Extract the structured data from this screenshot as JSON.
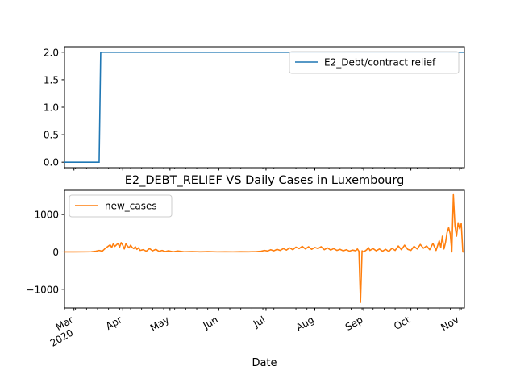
{
  "chart_data": [
    {
      "type": "line",
      "title": "",
      "xlabel": "",
      "ylabel": "",
      "x_start": "2020-02-24",
      "x_end": "2020-11-04",
      "ylim": [
        -0.1,
        2.1
      ],
      "yticks": [
        "0.0",
        "0.5",
        "1.0",
        "1.5",
        "2.0"
      ],
      "ytick_values": [
        0.0,
        0.5,
        1.0,
        1.5,
        2.0
      ],
      "legend_position": "top-right",
      "grid": false,
      "series": [
        {
          "name": "E2_Debt/contract relief",
          "color": "#1f77b4",
          "step": true,
          "points": [
            [
              "2020-02-24",
              0
            ],
            [
              "2020-03-17",
              0
            ],
            [
              "2020-03-18",
              2
            ],
            [
              "2020-11-04",
              2
            ]
          ]
        }
      ]
    },
    {
      "type": "line",
      "title": "E2_DEBT_RELIEF VS Daily Cases in Luxembourg",
      "xlabel": "Date",
      "ylabel": "",
      "x_start": "2020-02-24",
      "x_end": "2020-11-04",
      "ylim": [
        -1500,
        1650
      ],
      "yticks": [
        "−1000",
        "0",
        "1000"
      ],
      "ytick_values": [
        -1000,
        0,
        1000
      ],
      "legend_position": "top-left",
      "grid": false,
      "xticks": [
        {
          "label": "Mar",
          "date": "2020-03-01",
          "year": "2020"
        },
        {
          "label": "Apr",
          "date": "2020-04-01"
        },
        {
          "label": "May",
          "date": "2020-05-01"
        },
        {
          "label": "Jun",
          "date": "2020-06-01"
        },
        {
          "label": "Jul",
          "date": "2020-07-01"
        },
        {
          "label": "Aug",
          "date": "2020-08-01"
        },
        {
          "label": "Sep",
          "date": "2020-09-01"
        },
        {
          "label": "Oct",
          "date": "2020-10-01"
        },
        {
          "label": "Nov",
          "date": "2020-11-01"
        }
      ],
      "series": [
        {
          "name": "new_cases",
          "color": "#ff7f0e",
          "points": [
            [
              "2020-02-24",
              0
            ],
            [
              "2020-03-01",
              0
            ],
            [
              "2020-03-08",
              2
            ],
            [
              "2020-03-12",
              5
            ],
            [
              "2020-03-15",
              20
            ],
            [
              "2020-03-17",
              40
            ],
            [
              "2020-03-19",
              20
            ],
            [
              "2020-03-21",
              100
            ],
            [
              "2020-03-23",
              160
            ],
            [
              "2020-03-24",
              190
            ],
            [
              "2020-03-25",
              120
            ],
            [
              "2020-03-26",
              220
            ],
            [
              "2020-03-27",
              150
            ],
            [
              "2020-03-28",
              190
            ],
            [
              "2020-03-29",
              230
            ],
            [
              "2020-03-30",
              130
            ],
            [
              "2020-03-31",
              250
            ],
            [
              "2020-04-01",
              180
            ],
            [
              "2020-04-02",
              80
            ],
            [
              "2020-04-03",
              220
            ],
            [
              "2020-04-04",
              160
            ],
            [
              "2020-04-05",
              110
            ],
            [
              "2020-04-06",
              180
            ],
            [
              "2020-04-07",
              120
            ],
            [
              "2020-04-08",
              90
            ],
            [
              "2020-04-09",
              140
            ],
            [
              "2020-04-10",
              70
            ],
            [
              "2020-04-11",
              110
            ],
            [
              "2020-04-12",
              40
            ],
            [
              "2020-04-14",
              60
            ],
            [
              "2020-04-16",
              20
            ],
            [
              "2020-04-18",
              90
            ],
            [
              "2020-04-20",
              30
            ],
            [
              "2020-04-22",
              70
            ],
            [
              "2020-04-24",
              15
            ],
            [
              "2020-04-26",
              40
            ],
            [
              "2020-04-28",
              10
            ],
            [
              "2020-04-30",
              30
            ],
            [
              "2020-05-03",
              5
            ],
            [
              "2020-05-06",
              25
            ],
            [
              "2020-05-10",
              5
            ],
            [
              "2020-05-15",
              10
            ],
            [
              "2020-05-20",
              3
            ],
            [
              "2020-05-25",
              8
            ],
            [
              "2020-05-31",
              2
            ],
            [
              "2020-06-05",
              5
            ],
            [
              "2020-06-10",
              2
            ],
            [
              "2020-06-15",
              6
            ],
            [
              "2020-06-20",
              4
            ],
            [
              "2020-06-25",
              10
            ],
            [
              "2020-06-28",
              20
            ],
            [
              "2020-06-30",
              40
            ],
            [
              "2020-07-02",
              25
            ],
            [
              "2020-07-04",
              60
            ],
            [
              "2020-07-06",
              30
            ],
            [
              "2020-07-08",
              70
            ],
            [
              "2020-07-10",
              40
            ],
            [
              "2020-07-12",
              90
            ],
            [
              "2020-07-14",
              50
            ],
            [
              "2020-07-16",
              110
            ],
            [
              "2020-07-18",
              60
            ],
            [
              "2020-07-20",
              130
            ],
            [
              "2020-07-22",
              90
            ],
            [
              "2020-07-24",
              150
            ],
            [
              "2020-07-26",
              80
            ],
            [
              "2020-07-28",
              140
            ],
            [
              "2020-07-30",
              70
            ],
            [
              "2020-08-01",
              120
            ],
            [
              "2020-08-03",
              90
            ],
            [
              "2020-08-05",
              140
            ],
            [
              "2020-08-07",
              60
            ],
            [
              "2020-08-09",
              110
            ],
            [
              "2020-08-11",
              50
            ],
            [
              "2020-08-13",
              90
            ],
            [
              "2020-08-15",
              40
            ],
            [
              "2020-08-17",
              70
            ],
            [
              "2020-08-19",
              30
            ],
            [
              "2020-08-21",
              60
            ],
            [
              "2020-08-23",
              20
            ],
            [
              "2020-08-25",
              50
            ],
            [
              "2020-08-27",
              30
            ],
            [
              "2020-08-28",
              80
            ],
            [
              "2020-08-29",
              20
            ],
            [
              "2020-08-30",
              -1350
            ],
            [
              "2020-08-31",
              30
            ],
            [
              "2020-09-01",
              0
            ],
            [
              "2020-09-03",
              60
            ],
            [
              "2020-09-04",
              120
            ],
            [
              "2020-09-05",
              40
            ],
            [
              "2020-09-07",
              90
            ],
            [
              "2020-09-09",
              30
            ],
            [
              "2020-09-11",
              80
            ],
            [
              "2020-09-13",
              20
            ],
            [
              "2020-09-15",
              70
            ],
            [
              "2020-09-17",
              10
            ],
            [
              "2020-09-19",
              100
            ],
            [
              "2020-09-21",
              40
            ],
            [
              "2020-09-23",
              160
            ],
            [
              "2020-09-25",
              60
            ],
            [
              "2020-09-27",
              180
            ],
            [
              "2020-09-29",
              70
            ],
            [
              "2020-10-01",
              40
            ],
            [
              "2020-10-03",
              150
            ],
            [
              "2020-10-05",
              80
            ],
            [
              "2020-10-07",
              200
            ],
            [
              "2020-10-09",
              100
            ],
            [
              "2020-10-11",
              160
            ],
            [
              "2020-10-13",
              60
            ],
            [
              "2020-10-15",
              230
            ],
            [
              "2020-10-17",
              40
            ],
            [
              "2020-10-19",
              300
            ],
            [
              "2020-10-20",
              120
            ],
            [
              "2020-10-21",
              420
            ],
            [
              "2020-10-22",
              80
            ],
            [
              "2020-10-23",
              250
            ],
            [
              "2020-10-24",
              520
            ],
            [
              "2020-10-25",
              650
            ],
            [
              "2020-10-26",
              480
            ],
            [
              "2020-10-27",
              0
            ],
            [
              "2020-10-28",
              1530
            ],
            [
              "2020-10-29",
              700
            ],
            [
              "2020-10-30",
              420
            ],
            [
              "2020-10-31",
              780
            ],
            [
              "2020-11-01",
              620
            ],
            [
              "2020-11-02",
              760
            ],
            [
              "2020-11-03",
              0
            ],
            [
              "2020-11-04",
              0
            ]
          ]
        }
      ]
    }
  ]
}
